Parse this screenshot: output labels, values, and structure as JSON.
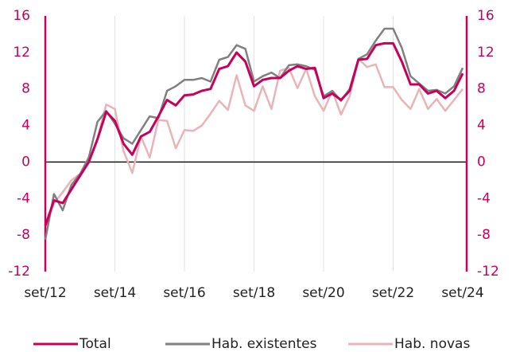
{
  "chart_data": {
    "type": "line",
    "categories": [
      "set/12",
      null,
      null,
      null,
      null,
      null,
      null,
      null,
      "set/14",
      null,
      null,
      null,
      null,
      null,
      null,
      null,
      "set/16",
      null,
      null,
      null,
      null,
      null,
      null,
      null,
      "set/18",
      null,
      null,
      null,
      null,
      null,
      null,
      null,
      "set/20",
      null,
      null,
      null,
      null,
      null,
      null,
      null,
      "set/22",
      null,
      null,
      null,
      null,
      null,
      null,
      null,
      "set/24"
    ],
    "series": [
      {
        "name": "Total",
        "color": "#c8005a",
        "values": [
          -7,
          -4.2,
          -4.5,
          -3,
          -1.5,
          0,
          2.5,
          5.5,
          4.5,
          2,
          0.8,
          2.8,
          3.3,
          5,
          6.8,
          6.2,
          7.3,
          7.4,
          7.8,
          8,
          10.2,
          10.5,
          12,
          11,
          8.3,
          9,
          9.2,
          9.2,
          10,
          10.5,
          10.2,
          10.3,
          7,
          7.5,
          6.8,
          7.8,
          11.2,
          11.3,
          12.8,
          13,
          13,
          11,
          8.5,
          8.5,
          7.5,
          7.8,
          7,
          7.8,
          9.7
        ]
      },
      {
        "name": "Hab. existentes",
        "color": "#808080",
        "values": [
          -8.5,
          -3.5,
          -5.3,
          -2.5,
          -1.3,
          0.5,
          4.4,
          5.6,
          4.2,
          2.6,
          2,
          3.5,
          5,
          4.8,
          7.8,
          8.3,
          9,
          9,
          9.2,
          8.8,
          11.2,
          11.5,
          12.8,
          12.4,
          8.8,
          9.4,
          9.8,
          9.2,
          10.6,
          10.7,
          10.5,
          10.1,
          7.2,
          7.8,
          6.7,
          8,
          11.3,
          11.8,
          13.3,
          14.6,
          14.6,
          12.5,
          9.4,
          8.6,
          7.8,
          7.9,
          7.5,
          8.3,
          10.3
        ]
      },
      {
        "name": "Hab. novas",
        "color": "#e8b4b8",
        "values": [
          -7,
          -4.5,
          -3.3,
          -2,
          -1.3,
          0,
          2.6,
          6.3,
          5.8,
          1.2,
          -1.2,
          2.8,
          0.5,
          4.6,
          4.5,
          1.5,
          3.5,
          3.4,
          4,
          5.3,
          6.7,
          5.7,
          9.5,
          6.2,
          5.6,
          8.3,
          5.8,
          10,
          10.3,
          8.1,
          10.2,
          7.2,
          5.6,
          7.8,
          5.2,
          7.2,
          11.3,
          10.4,
          10.7,
          8.2,
          8.2,
          6.8,
          5.8,
          8,
          5.8,
          6.9,
          5.6,
          6.8,
          8
        ]
      }
    ],
    "ylim": [
      -12,
      16
    ],
    "yticks": [
      16,
      12,
      8,
      4,
      0,
      -4,
      -8,
      -12
    ],
    "y2lim": [
      -12,
      16
    ],
    "y2ticks": [
      16,
      12,
      8,
      4,
      0,
      -4,
      -8,
      -12
    ],
    "axis_color": "#c8005a",
    "legend": "bottom"
  }
}
